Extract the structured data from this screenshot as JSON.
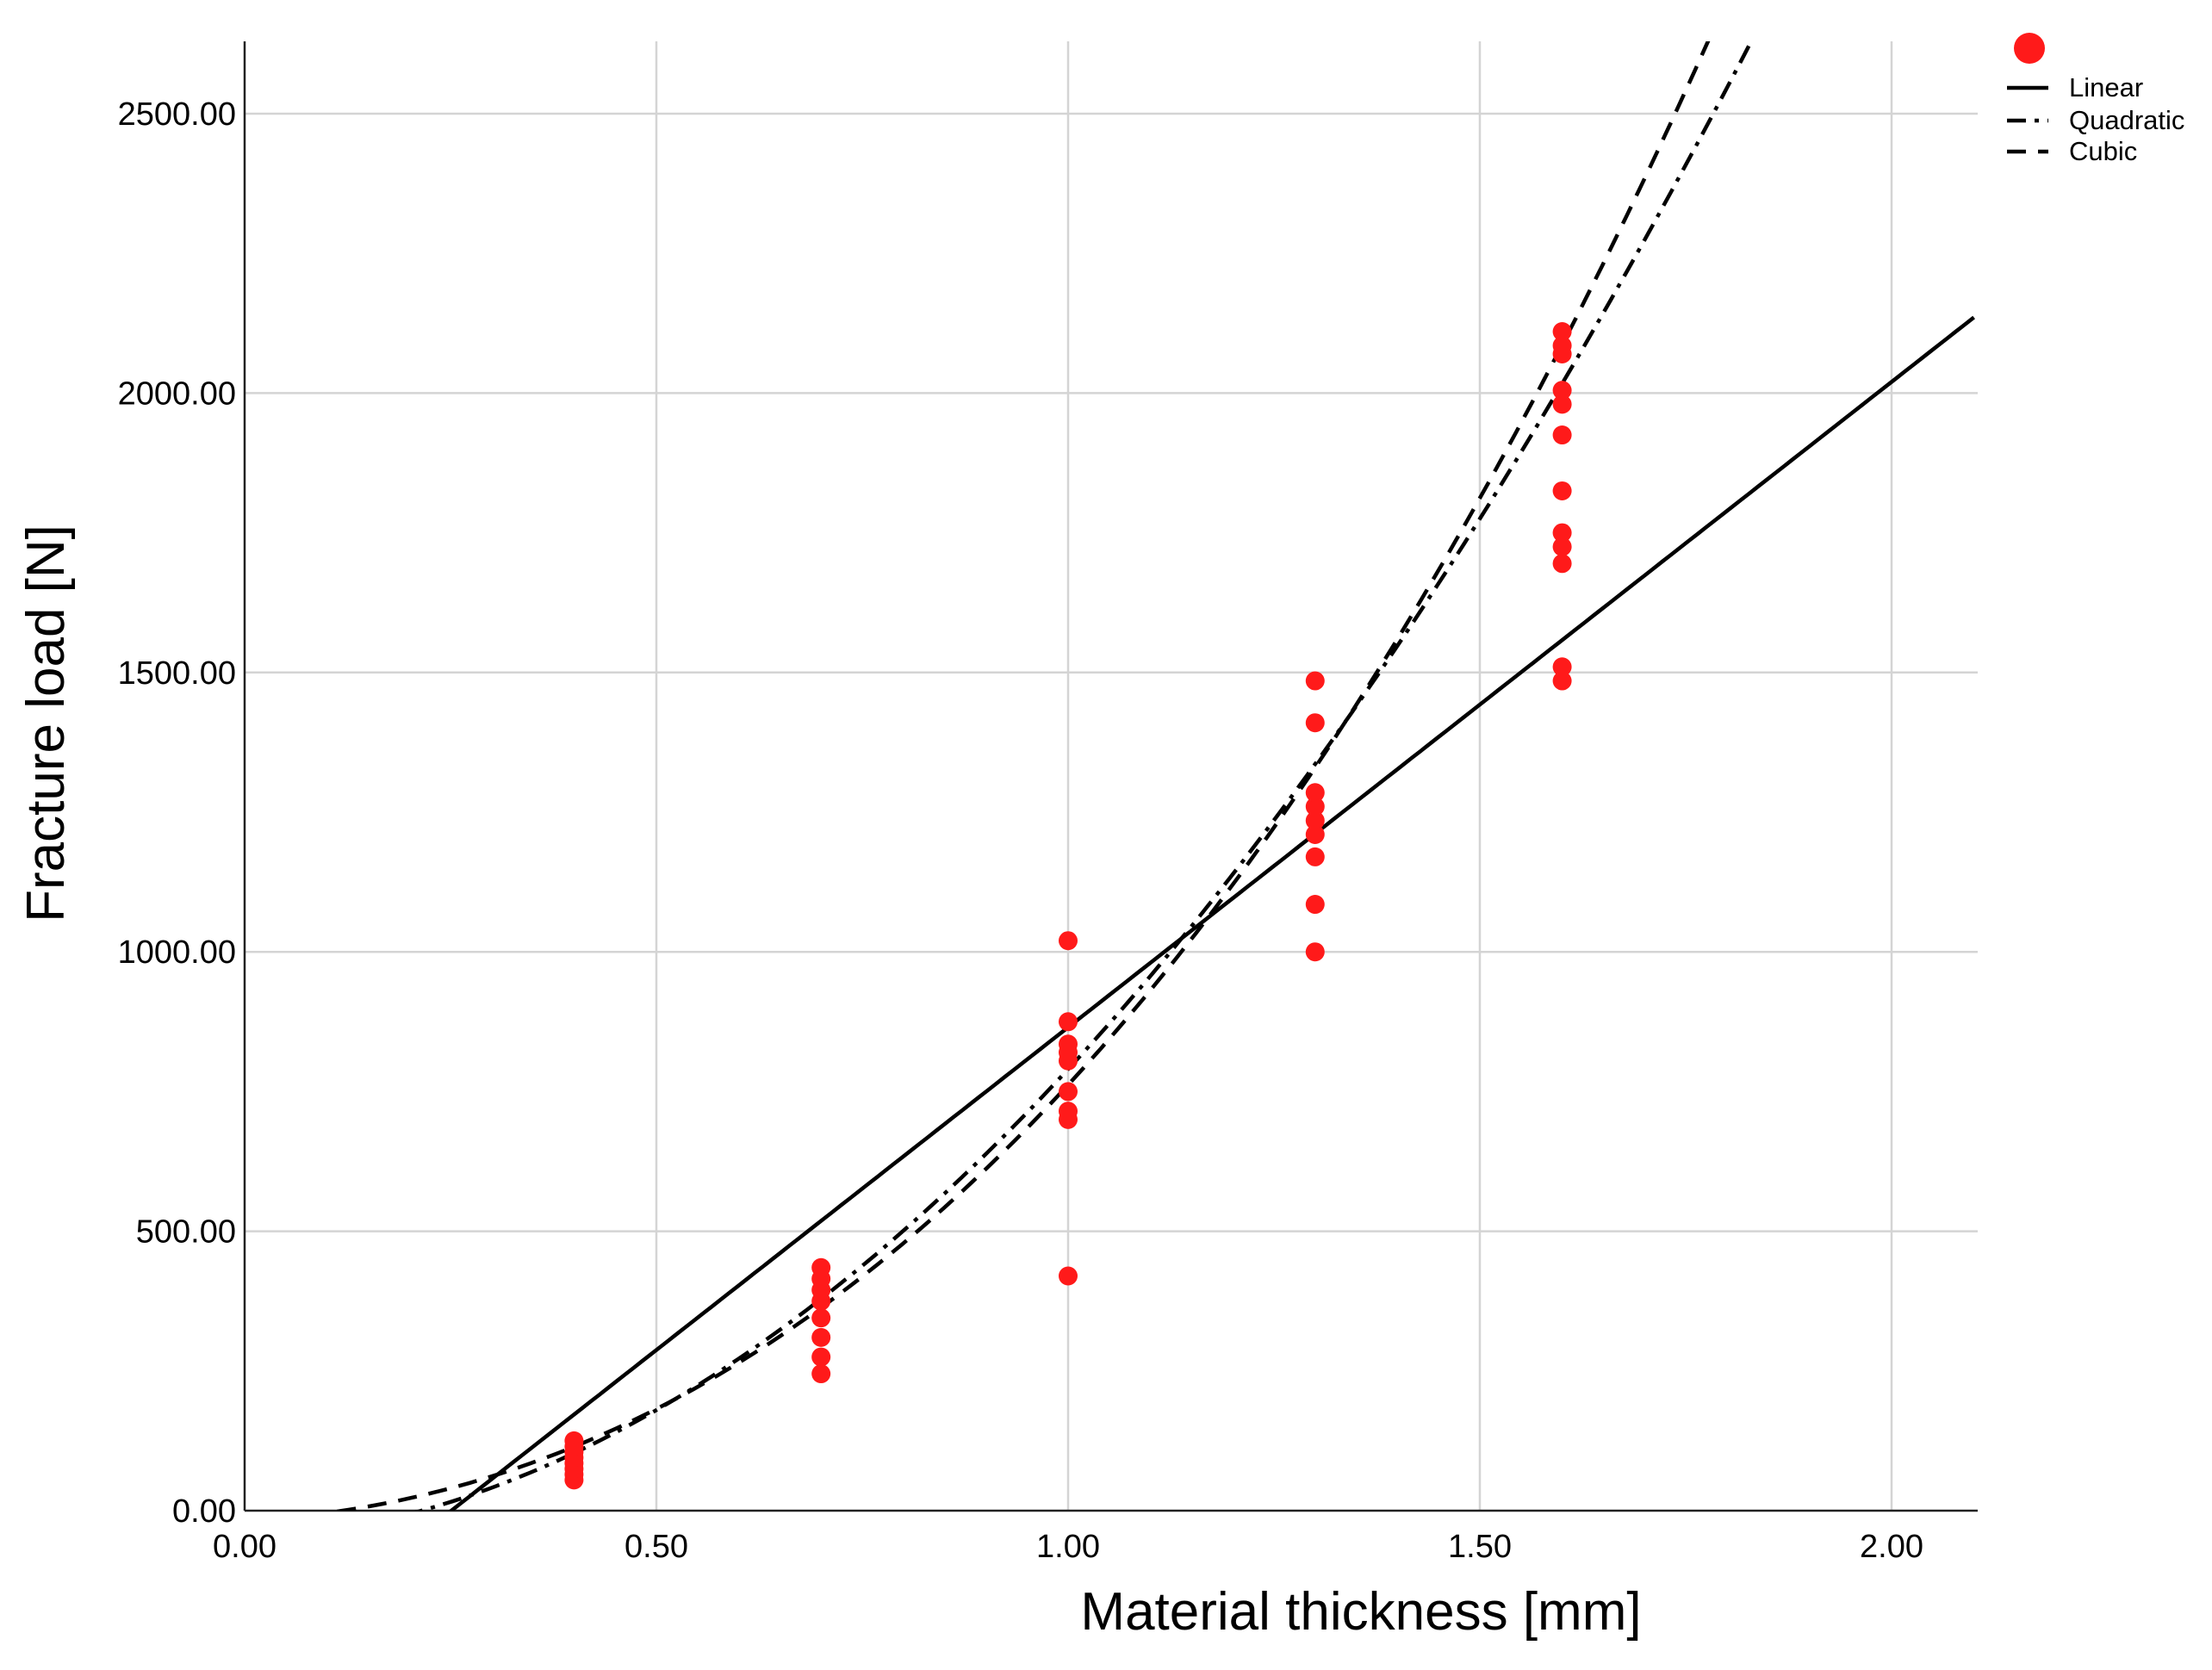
{
  "chart_data": {
    "type": "scatter",
    "xlabel": "Material thickness [mm]",
    "ylabel": "Fracture load [N]",
    "xlim": [
      0,
      2.1
    ],
    "ylim": [
      0,
      2630
    ],
    "xticks": [
      0,
      0.5,
      1.0,
      1.5,
      2.0
    ],
    "xtick_labels": [
      "0.00",
      "0.50",
      "1.00",
      "1.50",
      "2.00"
    ],
    "yticks": [
      0,
      500,
      1000,
      1500,
      2000,
      2500
    ],
    "ytick_labels": [
      "0.00",
      "500.00",
      "1000.00",
      "1500.00",
      "2000.00",
      "2500.00"
    ],
    "grid": true,
    "legend_position": "top-right",
    "point_color": "#ff1a1a",
    "line_color": "#000000",
    "points": [
      {
        "x": 0.4,
        "y": 55
      },
      {
        "x": 0.4,
        "y": 65
      },
      {
        "x": 0.4,
        "y": 75
      },
      {
        "x": 0.4,
        "y": 85
      },
      {
        "x": 0.4,
        "y": 95
      },
      {
        "x": 0.4,
        "y": 105
      },
      {
        "x": 0.4,
        "y": 115
      },
      {
        "x": 0.4,
        "y": 125
      },
      {
        "x": 0.7,
        "y": 245
      },
      {
        "x": 0.7,
        "y": 275
      },
      {
        "x": 0.7,
        "y": 310
      },
      {
        "x": 0.7,
        "y": 345
      },
      {
        "x": 0.7,
        "y": 375
      },
      {
        "x": 0.7,
        "y": 395
      },
      {
        "x": 0.7,
        "y": 415
      },
      {
        "x": 0.7,
        "y": 435
      },
      {
        "x": 1.0,
        "y": 420
      },
      {
        "x": 1.0,
        "y": 700
      },
      {
        "x": 1.0,
        "y": 715
      },
      {
        "x": 1.0,
        "y": 750
      },
      {
        "x": 1.0,
        "y": 805
      },
      {
        "x": 1.0,
        "y": 820
      },
      {
        "x": 1.0,
        "y": 835
      },
      {
        "x": 1.0,
        "y": 875
      },
      {
        "x": 1.0,
        "y": 1020
      },
      {
        "x": 1.3,
        "y": 1000
      },
      {
        "x": 1.3,
        "y": 1085
      },
      {
        "x": 1.3,
        "y": 1170
      },
      {
        "x": 1.3,
        "y": 1210
      },
      {
        "x": 1.3,
        "y": 1235
      },
      {
        "x": 1.3,
        "y": 1260
      },
      {
        "x": 1.3,
        "y": 1285
      },
      {
        "x": 1.3,
        "y": 1410
      },
      {
        "x": 1.3,
        "y": 1485
      },
      {
        "x": 1.6,
        "y": 1485
      },
      {
        "x": 1.6,
        "y": 1510
      },
      {
        "x": 1.6,
        "y": 1695
      },
      {
        "x": 1.6,
        "y": 1725
      },
      {
        "x": 1.6,
        "y": 1750
      },
      {
        "x": 1.6,
        "y": 1825
      },
      {
        "x": 1.6,
        "y": 1925
      },
      {
        "x": 1.6,
        "y": 1980
      },
      {
        "x": 1.6,
        "y": 2005
      },
      {
        "x": 1.6,
        "y": 2070
      },
      {
        "x": 1.6,
        "y": 2085
      },
      {
        "x": 1.6,
        "y": 2110
      }
    ],
    "series": [
      {
        "name": "Linear",
        "style": "solid",
        "coefficients": [
          -290,
          1155
        ]
      },
      {
        "name": "Quadratic",
        "style": "dash-dot",
        "coefficients": [
          -55,
          95,
          750
        ]
      },
      {
        "name": "Cubic",
        "style": "dashed",
        "coefficients": [
          -18,
          80,
          580,
          120
        ]
      }
    ]
  },
  "legend": {
    "marker_label": "",
    "entries": [
      {
        "label": "Linear",
        "style": "solid"
      },
      {
        "label": "Quadratic",
        "style": "dash-dot"
      },
      {
        "label": "Cubic",
        "style": "dashed"
      }
    ]
  }
}
